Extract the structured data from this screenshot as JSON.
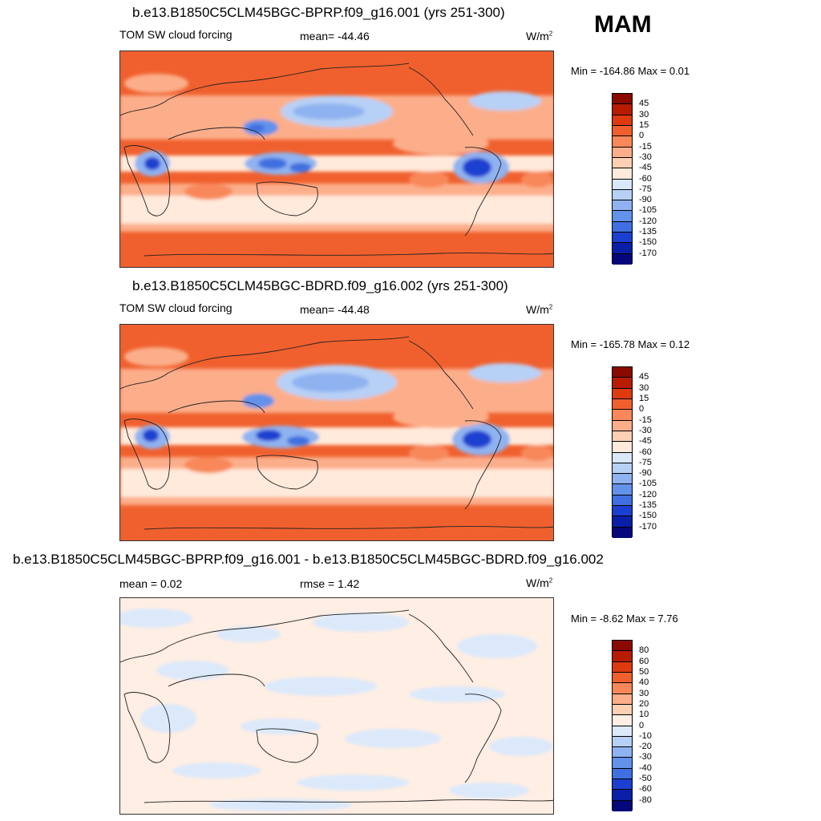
{
  "season": "MAM",
  "units_text": "W/m",
  "units_exp": "2",
  "panels": [
    {
      "title": "b.e13.B1850C5CLM45BGC-BPRP.f09_g16.001 (yrs 251-300)",
      "variable": "TOM SW cloud forcing",
      "mean_text": "mean= -44.46",
      "minmax_text": "Min = -164.86 Max =   0.01"
    },
    {
      "title": "b.e13.B1850C5CLM45BGC-BDRD.f09_g16.002 (yrs 251-300)",
      "variable": "TOM SW cloud forcing",
      "mean_text": "mean= -44.48",
      "minmax_text": "Min = -165.78 Max =   0.12"
    },
    {
      "title": "b.e13.B1850C5CLM45BGC-BPRP.f09_g16.001 - b.e13.B1850C5CLM45BGC-BDRD.f09_g16.002",
      "mean_text": "mean =   0.02",
      "rmse_text": "rmse =   1.42",
      "minmax_text": "Min =  -8.62 Max =   7.76"
    }
  ],
  "chart_data": [
    {
      "type": "heatmap",
      "title": "b.e13.B1850C5CLM45BGC-BPRP.f09_g16.001 (yrs 251-300)",
      "variable": "TOM SW cloud forcing",
      "units": "W/m2",
      "mean": -44.46,
      "min": -164.86,
      "max": 0.01,
      "colorbar_levels": [
        "45",
        "30",
        "15",
        "0",
        "-15",
        "-30",
        "-45",
        "-60",
        "-75",
        "-90",
        "-105",
        "-120",
        "-135",
        "-150",
        "-170"
      ]
    },
    {
      "type": "heatmap",
      "title": "b.e13.B1850C5CLM45BGC-BDRD.f09_g16.002 (yrs 251-300)",
      "variable": "TOM SW cloud forcing",
      "units": "W/m2",
      "mean": -44.48,
      "min": -165.78,
      "max": 0.12,
      "colorbar_levels": [
        "45",
        "30",
        "15",
        "0",
        "-15",
        "-30",
        "-45",
        "-60",
        "-75",
        "-90",
        "-105",
        "-120",
        "-135",
        "-150",
        "-170"
      ]
    },
    {
      "type": "heatmap",
      "title": "b.e13.B1850C5CLM45BGC-BPRP.f09_g16.001 - b.e13.B1850C5CLM45BGC-BDRD.f09_g16.002",
      "units": "W/m2",
      "mean": 0.02,
      "rmse": 1.42,
      "min": -8.62,
      "max": 7.76,
      "colorbar_levels": [
        "80",
        "60",
        "50",
        "40",
        "30",
        "20",
        "10",
        "0",
        "-10",
        "-20",
        "-30",
        "-40",
        "-50",
        "-60",
        "-80"
      ]
    }
  ],
  "colors": {
    "abs_scale": [
      "#8b0a00",
      "#b81c00",
      "#de3a10",
      "#f0602e",
      "#f8885a",
      "#fcae8a",
      "#fdd0b4",
      "#ffeadb",
      "#d9e8fa",
      "#b7d0f6",
      "#8fb2f0",
      "#6292ea",
      "#3f6fe0",
      "#1b40d0",
      "#0a1fa8",
      "#04087a"
    ],
    "diff_scale": [
      "#8b0a00",
      "#b81c00",
      "#de3a10",
      "#f0602e",
      "#f8885a",
      "#fcae8a",
      "#fdd0b4",
      "#ffeee3",
      "#dbe9fb",
      "#b7d0f6",
      "#8fb2f0",
      "#6292ea",
      "#3f6fe0",
      "#1b40d0",
      "#0a1fa8",
      "#04087a"
    ]
  }
}
